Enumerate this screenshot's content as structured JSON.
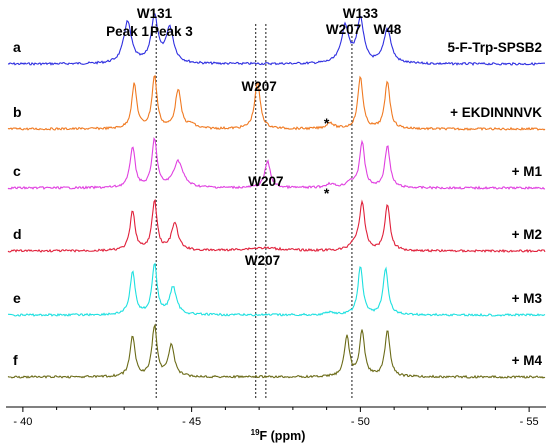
{
  "chart_data": {
    "type": "line",
    "xlabel_sup": "19",
    "xlabel_main": "F (ppm)",
    "xlim": [
      -39.5,
      -55.5
    ],
    "x_ticks": [
      -40,
      -45,
      -50,
      -55
    ],
    "x_tick_labels": [
      "- 40",
      "- 45",
      "- 50",
      "- 55"
    ],
    "peak_labels": [
      {
        "text": "Peak 1",
        "ppm": -43.1
      },
      {
        "text": "W131",
        "ppm": -43.9
      },
      {
        "text": "Peak 3",
        "ppm": -44.4
      },
      {
        "text": "W207",
        "ppm": -49.5
      },
      {
        "text": "W133",
        "ppm": -50.0
      },
      {
        "text": "W48",
        "ppm": -50.8
      }
    ],
    "guide_lines_ppm": [
      -43.95,
      -46.9,
      -47.2,
      -49.75
    ],
    "series": [
      {
        "letter": "a",
        "name": "5-F-Trp-SPSB2",
        "color": "#2f2fe0",
        "peaks": [
          [
            -43.1,
            0.9,
            0.14
          ],
          [
            -43.9,
            1.0,
            0.12
          ],
          [
            -44.35,
            0.75,
            0.14
          ],
          [
            -49.55,
            0.8,
            0.14
          ],
          [
            -50.0,
            0.95,
            0.12
          ],
          [
            -50.8,
            0.75,
            0.13
          ]
        ]
      },
      {
        "letter": "b",
        "name": "+ EKDINNNVK",
        "color": "#f07a22",
        "peaks": [
          [
            -43.3,
            0.85,
            0.09
          ],
          [
            -43.9,
            1.0,
            0.09
          ],
          [
            -44.6,
            0.75,
            0.1
          ],
          [
            -45.0,
            0.08,
            0.12
          ],
          [
            -46.95,
            0.9,
            0.1
          ],
          [
            -49.1,
            0.12,
            0.12
          ],
          [
            -50.0,
            1.0,
            0.09
          ],
          [
            -50.8,
            0.92,
            0.09
          ]
        ]
      },
      {
        "letter": "c",
        "name": "+ M1",
        "color": "#e040e0",
        "peaks": [
          [
            -43.25,
            0.85,
            0.09
          ],
          [
            -43.9,
            1.0,
            0.09
          ],
          [
            -44.6,
            0.55,
            0.17
          ],
          [
            -47.25,
            0.55,
            0.1
          ],
          [
            -49.1,
            0.08,
            0.15
          ],
          [
            -49.7,
            0.12,
            0.14
          ],
          [
            -50.05,
            0.95,
            0.09
          ],
          [
            -50.8,
            0.88,
            0.09
          ]
        ]
      },
      {
        "letter": "d",
        "name": "+ M2",
        "color": "#e0203a",
        "peaks": [
          [
            -43.25,
            0.8,
            0.09
          ],
          [
            -43.9,
            1.0,
            0.09
          ],
          [
            -44.5,
            0.55,
            0.12
          ],
          [
            -47.1,
            0.06,
            0.7
          ],
          [
            -49.8,
            0.12,
            0.14
          ],
          [
            -50.05,
            0.95,
            0.1
          ],
          [
            -50.8,
            0.95,
            0.09
          ]
        ]
      },
      {
        "letter": "e",
        "name": "+ M3",
        "color": "#1ee0e0",
        "peaks": [
          [
            -43.25,
            0.85,
            0.09
          ],
          [
            -43.9,
            1.0,
            0.09
          ],
          [
            -44.45,
            0.55,
            0.12
          ],
          [
            -49.1,
            0.06,
            0.12
          ],
          [
            -50.0,
            0.95,
            0.09
          ],
          [
            -50.75,
            0.92,
            0.09
          ]
        ]
      },
      {
        "letter": "f",
        "name": "+ M4",
        "color": "#6b6b18",
        "peaks": [
          [
            -43.25,
            0.8,
            0.09
          ],
          [
            -43.9,
            1.0,
            0.09
          ],
          [
            -44.4,
            0.65,
            0.1
          ],
          [
            -49.6,
            0.8,
            0.09
          ],
          [
            -50.05,
            0.9,
            0.09
          ],
          [
            -50.8,
            0.92,
            0.09
          ]
        ]
      }
    ],
    "annotations": [
      {
        "text": "W207",
        "row": "b",
        "ppm": -47.0
      },
      {
        "text": "W207",
        "row": "c",
        "ppm": -47.2
      },
      {
        "text": "W207",
        "row": "d",
        "ppm": -47.1
      },
      {
        "text": "*",
        "row": "b",
        "ppm": -49.0
      },
      {
        "text": "*",
        "row": "c",
        "ppm": -49.0
      }
    ]
  }
}
